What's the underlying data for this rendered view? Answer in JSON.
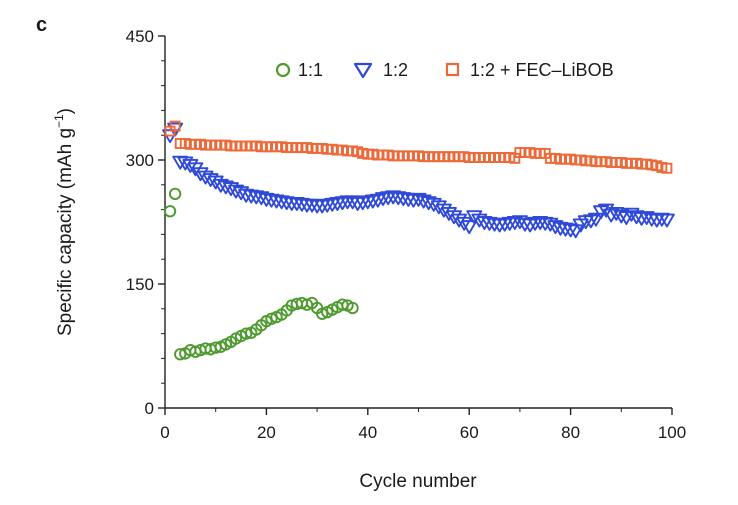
{
  "panel_label": "c",
  "colors": {
    "series_1_1": "#4e9a2f",
    "series_1_2": "#2f49d8",
    "series_fec": "#ec6a3a",
    "axis": "#222222"
  },
  "chart_data": {
    "type": "scatter",
    "xlabel": "Cycle number",
    "ylabel": "Specific capacity (mAh g",
    "ylabel_sup": "−1",
    "ylabel_end": ")",
    "xlim": [
      0,
      100
    ],
    "ylim": [
      0,
      450
    ],
    "xticks": [
      0,
      20,
      40,
      60,
      80,
      100
    ],
    "yticks": [
      0,
      150,
      300,
      450
    ],
    "grid": false,
    "legend_position": "top-right",
    "series": [
      {
        "name": "1:1",
        "marker": "circle",
        "x": [
          1,
          2,
          3,
          4,
          5,
          6,
          7,
          8,
          9,
          10,
          11,
          12,
          13,
          14,
          15,
          16,
          17,
          18,
          19,
          20,
          21,
          22,
          23,
          24,
          25,
          26,
          27,
          28,
          29,
          30,
          31,
          32,
          33,
          34,
          35,
          36,
          37
        ],
        "values": [
          238,
          259,
          65,
          66,
          70,
          68,
          70,
          72,
          71,
          73,
          74,
          77,
          80,
          84,
          87,
          90,
          91,
          95,
          100,
          105,
          108,
          110,
          113,
          118,
          124,
          126,
          127,
          125,
          127,
          121,
          114,
          116,
          119,
          122,
          125,
          124,
          121
        ]
      },
      {
        "name": "1:2",
        "marker": "triangle-down",
        "x": [
          1,
          2,
          3,
          4,
          5,
          6,
          7,
          8,
          9,
          10,
          11,
          12,
          13,
          14,
          15,
          16,
          17,
          18,
          19,
          20,
          21,
          22,
          23,
          24,
          25,
          26,
          27,
          28,
          29,
          30,
          31,
          32,
          33,
          34,
          35,
          36,
          37,
          38,
          39,
          40,
          41,
          42,
          43,
          44,
          45,
          46,
          47,
          48,
          49,
          50,
          51,
          52,
          53,
          54,
          55,
          56,
          57,
          58,
          59,
          60,
          61,
          62,
          63,
          64,
          65,
          66,
          67,
          68,
          69,
          70,
          71,
          72,
          73,
          74,
          75,
          76,
          77,
          78,
          79,
          80,
          81,
          82,
          83,
          84,
          85,
          86,
          87,
          88,
          89,
          90,
          91,
          92,
          93,
          94,
          95,
          96,
          97,
          98,
          99
        ],
        "values": [
          330,
          338,
          298,
          297,
          294,
          290,
          284,
          280,
          277,
          274,
          270,
          268,
          266,
          263,
          261,
          258,
          257,
          256,
          255,
          253,
          252,
          251,
          250,
          249,
          248,
          248,
          247,
          246,
          246,
          245,
          245,
          246,
          247,
          248,
          249,
          250,
          250,
          248,
          249,
          250,
          251,
          252,
          254,
          255,
          256,
          255,
          254,
          253,
          252,
          253,
          251,
          249,
          247,
          244,
          240,
          236,
          232,
          228,
          224,
          220,
          232,
          228,
          225,
          224,
          223,
          222,
          223,
          224,
          225,
          226,
          223,
          222,
          224,
          225,
          224,
          223,
          220,
          218,
          217,
          216,
          215,
          222,
          226,
          227,
          229,
          238,
          240,
          234,
          236,
          233,
          231,
          235,
          232,
          230,
          231,
          229,
          228,
          229,
          228
        ]
      },
      {
        "name": "1:2 + FEC–LiBOB",
        "marker": "square",
        "x": [
          1,
          2,
          3,
          4,
          5,
          6,
          7,
          8,
          9,
          10,
          11,
          12,
          13,
          14,
          15,
          16,
          17,
          18,
          19,
          20,
          21,
          22,
          23,
          24,
          25,
          26,
          27,
          28,
          29,
          30,
          31,
          32,
          33,
          34,
          35,
          36,
          37,
          38,
          39,
          40,
          41,
          42,
          43,
          44,
          45,
          46,
          47,
          48,
          49,
          50,
          51,
          52,
          53,
          54,
          55,
          56,
          57,
          58,
          59,
          60,
          61,
          62,
          63,
          64,
          65,
          66,
          67,
          68,
          69,
          70,
          71,
          72,
          73,
          74,
          75,
          76,
          77,
          78,
          79,
          80,
          81,
          82,
          83,
          84,
          85,
          86,
          87,
          88,
          89,
          90,
          91,
          92,
          93,
          94,
          95,
          96,
          97,
          98,
          99
        ],
        "values": [
          335,
          341,
          320,
          320,
          319,
          319,
          319,
          318,
          318,
          318,
          318,
          318,
          317,
          317,
          317,
          317,
          317,
          317,
          316,
          316,
          316,
          316,
          316,
          315,
          315,
          315,
          315,
          315,
          314,
          314,
          314,
          313,
          313,
          312,
          312,
          311,
          311,
          310,
          308,
          307,
          307,
          306,
          306,
          306,
          305,
          305,
          305,
          305,
          305,
          305,
          304,
          304,
          304,
          304,
          304,
          304,
          304,
          304,
          304,
          303,
          303,
          303,
          303,
          303,
          303,
          303,
          303,
          303,
          302,
          309,
          309,
          309,
          308,
          308,
          308,
          302,
          302,
          301,
          301,
          301,
          300,
          300,
          299,
          299,
          298,
          298,
          298,
          297,
          297,
          297,
          296,
          296,
          296,
          295,
          295,
          294,
          293,
          291,
          290
        ]
      }
    ]
  }
}
